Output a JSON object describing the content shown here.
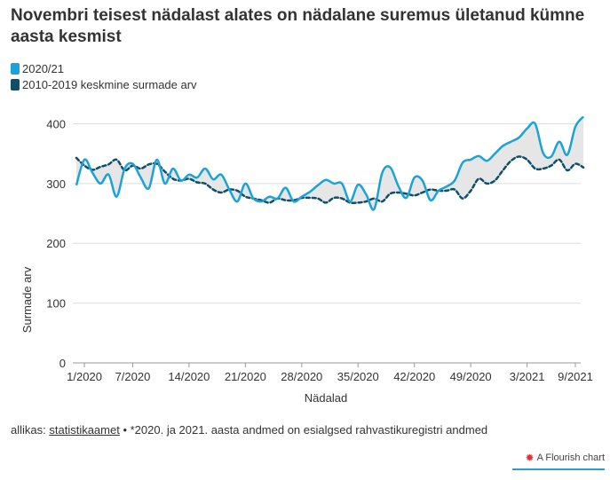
{
  "title": "Novembri teisest nädalast alates on nädalane suremus ületanud kümne aasta kesmist",
  "legend": {
    "items": [
      {
        "label": "2020/21",
        "color": "#1ba3d9"
      },
      {
        "label": "2010-2019 keskmine surmade arv",
        "color": "#0d4f6b"
      }
    ]
  },
  "footer": {
    "prefix": "allikas: ",
    "source": "statistikaamet",
    "note": " • *2020. ja 2021. aasta andmed on esialgsed rahvastikuregistri andmed"
  },
  "branding": {
    "label": "A Flourish chart",
    "icon": "flourish-burst-icon"
  },
  "chart_data": {
    "type": "line",
    "xlabel": "Nädalad",
    "ylabel": "Surmade arv",
    "ylim": [
      0,
      420
    ],
    "yticks": [
      0,
      100,
      200,
      300,
      400
    ],
    "x_tick_labels": [
      "1/2020",
      "7/2020",
      "14/2020",
      "21/2020",
      "28/2020",
      "35/2020",
      "42/2020",
      "49/2020",
      "3/2021",
      "9/2021"
    ],
    "x_tick_index": [
      1,
      7,
      14,
      21,
      28,
      35,
      42,
      49,
      56,
      62
    ],
    "weeks": 63,
    "grid": true,
    "fill_between_series": true,
    "series": [
      {
        "name": "2020/21",
        "color": "#1ba3d9",
        "style": "solid",
        "values": [
          297,
          340,
          318,
          300,
          315,
          278,
          325,
          333,
          310,
          292,
          340,
          300,
          325,
          305,
          315,
          310,
          325,
          307,
          315,
          290,
          270,
          300,
          275,
          270,
          278,
          275,
          293,
          270,
          278,
          286,
          297,
          306,
          300,
          300,
          270,
          298,
          282,
          257,
          318,
          327,
          296,
          276,
          310,
          305,
          272,
          288,
          295,
          305,
          335,
          340,
          346,
          338,
          350,
          363,
          370,
          377,
          392,
          400,
          351,
          345,
          370,
          348,
          395,
          412
        ]
      },
      {
        "name": "2010-2019 keskmine surmade arv",
        "color": "#0d4f6b",
        "style": "dashed",
        "values": [
          343,
          330,
          323,
          328,
          332,
          340,
          322,
          330,
          325,
          332,
          333,
          320,
          308,
          305,
          308,
          302,
          300,
          290,
          285,
          290,
          288,
          278,
          275,
          272,
          268,
          275,
          272,
          272,
          276,
          276,
          275,
          268,
          276,
          275,
          268,
          268,
          270,
          275,
          270,
          283,
          285,
          283,
          280,
          285,
          290,
          288,
          288,
          290,
          275,
          288,
          308,
          300,
          305,
          322,
          338,
          345,
          340,
          325,
          325,
          330,
          340,
          322,
          333,
          327
        ]
      }
    ]
  }
}
